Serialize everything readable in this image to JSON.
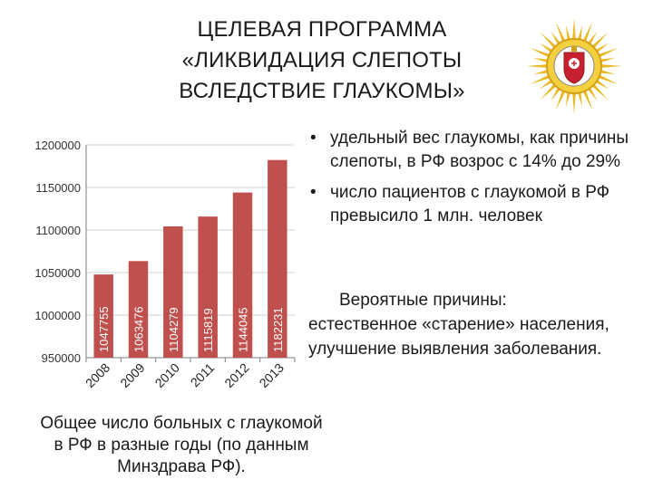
{
  "slide": {
    "title_lines": [
      "ЦЕЛЕВАЯ ПРОГРАММА",
      "«ЛИКВИДАЦИЯ СЛЕПОТЫ",
      "ВСЛЕДСТВИЕ ГЛАУКОМЫ»"
    ],
    "caption_lines": [
      "Общее число больных с глаукомой",
      "в РФ в разные годы (по данным",
      "Минздрава РФ)."
    ],
    "bullets": [
      "удельный вес глаукомы, как причины слепоты, в РФ возрос с 14% до 29%",
      "число пациентов с глаукомой в РФ превысило  1 млн. человек"
    ],
    "causes_head": "Вероятные причины:",
    "causes_body": "естественное «старение» населения, улучшение выявления заболевания."
  },
  "colors": {
    "bar": "#c0504d",
    "axis": "#7f7f7f",
    "grid": "#a6a6a6",
    "emblem_gold": "#e8b923",
    "emblem_red": "#c8202e"
  },
  "chart_data": {
    "type": "bar",
    "categories": [
      "2008",
      "2009",
      "2010",
      "2011",
      "2012",
      "2013"
    ],
    "values": [
      1047755,
      1063476,
      1104279,
      1115819,
      1144045,
      1182231
    ],
    "yticks": [
      "1200000",
      "1150000",
      "1100000",
      "1050000",
      "1000000",
      "950000"
    ],
    "ylim": [
      950000,
      1200000
    ],
    "grid": true,
    "data_labels": "inside-bar-rotated",
    "x_labels_rotated": true
  }
}
